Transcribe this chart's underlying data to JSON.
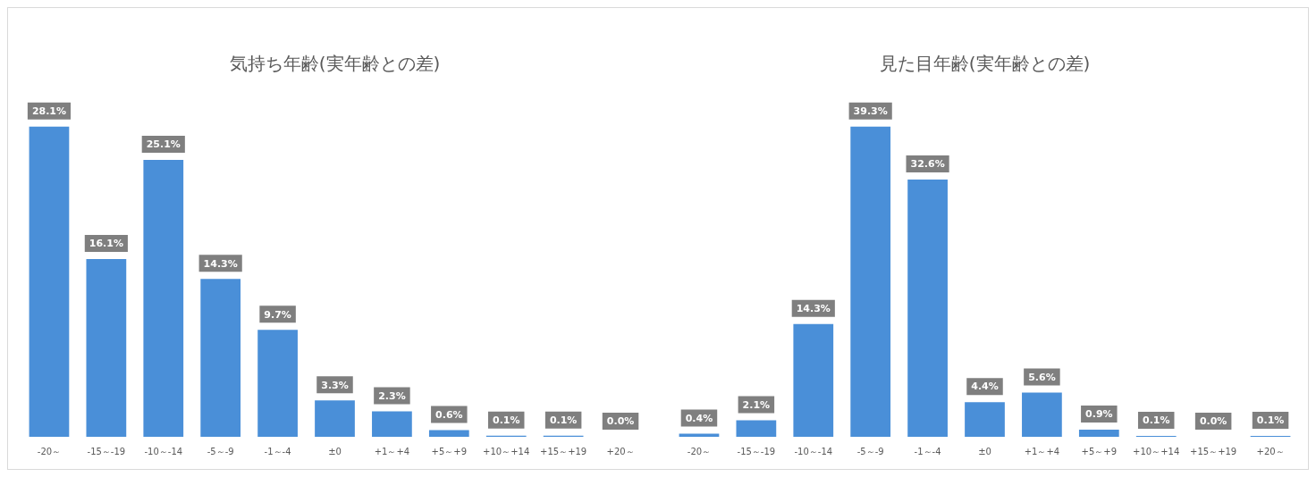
{
  "chart_data": [
    {
      "type": "bar",
      "title": "気持ち年齢(実年齢との差)",
      "categories": [
        "-20～",
        "-15～-19",
        "-10～-14",
        "-5～-9",
        "-1～-4",
        "±0",
        "+1～+4",
        "+5～+9",
        "+10～+14",
        "+15～+19",
        "+20～"
      ],
      "values": [
        28.1,
        16.1,
        25.1,
        14.3,
        9.7,
        3.3,
        2.3,
        0.6,
        0.1,
        0.1,
        0.0
      ],
      "value_labels": [
        "28.1%",
        "16.1%",
        "25.1%",
        "14.3%",
        "9.7%",
        "3.3%",
        "2.3%",
        "0.6%",
        "0.1%",
        "0.1%",
        "0.0%"
      ],
      "color": "#4a8fd8",
      "grid": false,
      "legend": false
    },
    {
      "type": "bar",
      "title": "見た目年齢(実年齢との差)",
      "categories": [
        "-20～",
        "-15～-19",
        "-10～-14",
        "-5～-9",
        "-1～-4",
        "±0",
        "+1～+4",
        "+5～+9",
        "+10～+14",
        "+15～+19",
        "+20～"
      ],
      "values": [
        0.4,
        2.1,
        14.3,
        39.3,
        32.6,
        4.4,
        5.6,
        0.9,
        0.1,
        0.0,
        0.1
      ],
      "value_labels": [
        "0.4%",
        "2.1%",
        "14.3%",
        "39.3%",
        "32.6%",
        "4.4%",
        "5.6%",
        "0.9%",
        "0.1%",
        "0.0%",
        "0.1%"
      ],
      "color": "#4a8fd8",
      "grid": false,
      "legend": false
    }
  ]
}
